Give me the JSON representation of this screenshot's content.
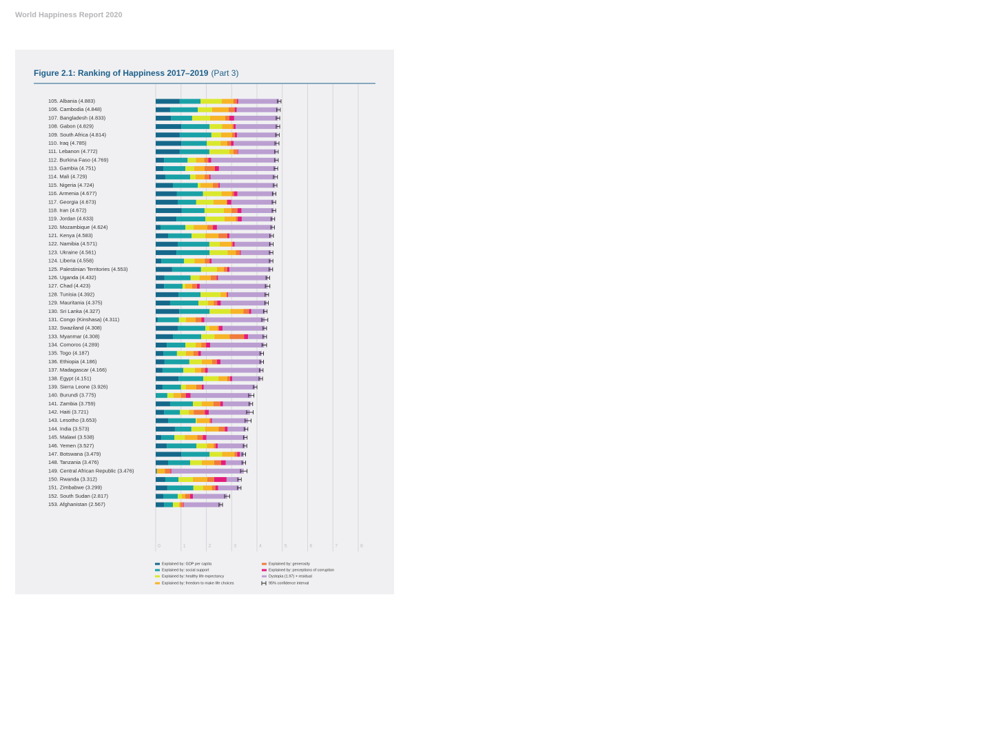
{
  "header": {
    "title": "World Happiness Report 2020"
  },
  "chart_data": {
    "type": "stacked-bar-horizontal",
    "title": "Figure 2.1: Ranking of Happiness 2017–2019",
    "subtitle": "(Part 3)",
    "categories": [
      "105. Albania (4.883)",
      "106. Cambodia (4.848)",
      "107. Bangladesh (4.833)",
      "108. Gabon (4.829)",
      "109. South Africa (4.814)",
      "110. Iraq (4.785)",
      "111. Lebanon (4.772)",
      "112. Burkina Faso (4.769)",
      "113. Gambia (4.751)",
      "114. Mali (4.729)",
      "115. Nigeria (4.724)",
      "116. Armenia (4.677)",
      "117. Georgia (4.673)",
      "118. Iran (4.672)",
      "119. Jordan (4.633)",
      "120. Mozambique (4.624)",
      "121. Kenya (4.583)",
      "122. Namibia (4.571)",
      "123. Ukraine (4.561)",
      "124. Liberia (4.558)",
      "125. Palestinian Territories (4.553)",
      "126. Uganda (4.432)",
      "127. Chad (4.423)",
      "128. Tunisia (4.392)",
      "129. Mauritania (4.375)",
      "130. Sri Lanka (4.327)",
      "131. Congo (Kinshasa) (4.311)",
      "132. Swaziland (4.308)",
      "133. Myanmar (4.308)",
      "134. Comoros (4.289)",
      "135. Togo (4.187)",
      "136. Ethiopia (4.186)",
      "137. Madagascar (4.166)",
      "138. Egypt (4.151)",
      "139. Sierra Leone (3.926)",
      "140. Burundi (3.775)",
      "141. Zambia (3.759)",
      "142. Haiti (3.721)",
      "143. Lesotho (3.653)",
      "144. India (3.573)",
      "145. Malawi (3.538)",
      "146. Yemen (3.527)",
      "147. Botswana (3.479)",
      "148. Tanzania (3.476)",
      "149. Central African Republic (3.476)",
      "150. Rwanda (3.312)",
      "151. Zimbabwe (3.299)",
      "152. South Sudan (2.817)",
      "153. Afghanistan (2.567)"
    ],
    "series": [
      {
        "name": "Explained by: GDP per capita",
        "color": "#16688a",
        "values": [
          0.95,
          0.57,
          0.6,
          1.01,
          0.95,
          1.01,
          0.95,
          0.33,
          0.3,
          0.38,
          0.68,
          0.84,
          0.87,
          1.03,
          0.82,
          0.19,
          0.49,
          0.87,
          0.82,
          0.22,
          0.65,
          0.35,
          0.33,
          0.9,
          0.57,
          0.93,
          0.08,
          0.87,
          0.68,
          0.44,
          0.3,
          0.35,
          0.27,
          0.9,
          0.27,
          0.02,
          0.57,
          0.33,
          0.49,
          0.76,
          0.22,
          0.44,
          1.01,
          0.49,
          0.04,
          0.38,
          0.46,
          0.3,
          0.33
        ]
      },
      {
        "name": "Explained by: social support",
        "color": "#19a1a6",
        "values": [
          0.82,
          1.09,
          0.84,
          1.12,
          1.25,
          1.01,
          1.17,
          0.93,
          0.87,
          0.98,
          0.98,
          1.03,
          0.73,
          0.9,
          1.14,
          0.98,
          0.93,
          1.25,
          1.31,
          0.9,
          1.14,
          1.03,
          0.73,
          0.87,
          1.12,
          1.2,
          0.84,
          1.09,
          1.12,
          0.73,
          0.54,
          0.98,
          0.82,
          0.98,
          0.73,
          0.44,
          0.9,
          0.63,
          1.09,
          0.65,
          0.52,
          1.17,
          1.12,
          0.87,
          0.0,
          0.52,
          1.03,
          0.57,
          0.35
        ]
      },
      {
        "name": "Explained by: healthy life expectancy",
        "color": "#d9e82c",
        "values": [
          0.84,
          0.57,
          0.71,
          0.49,
          0.38,
          0.54,
          0.79,
          0.33,
          0.35,
          0.22,
          0.11,
          0.73,
          0.68,
          0.76,
          0.76,
          0.33,
          0.54,
          0.41,
          0.71,
          0.41,
          0.63,
          0.35,
          0.11,
          0.79,
          0.38,
          0.82,
          0.27,
          0.16,
          0.52,
          0.41,
          0.35,
          0.49,
          0.46,
          0.6,
          0.19,
          0.24,
          0.35,
          0.35,
          0.05,
          0.54,
          0.41,
          0.41,
          0.49,
          0.46,
          0.01,
          0.57,
          0.38,
          0.16,
          0.24
        ]
      },
      {
        "name": "Explained by: freedom to make life choices",
        "color": "#f6b426",
        "values": [
          0.46,
          0.65,
          0.6,
          0.41,
          0.44,
          0.27,
          0.16,
          0.33,
          0.41,
          0.35,
          0.49,
          0.41,
          0.52,
          0.3,
          0.44,
          0.54,
          0.52,
          0.46,
          0.33,
          0.41,
          0.27,
          0.44,
          0.27,
          0.22,
          0.22,
          0.52,
          0.38,
          0.33,
          0.6,
          0.22,
          0.3,
          0.41,
          0.24,
          0.35,
          0.41,
          0.3,
          0.46,
          0.19,
          0.49,
          0.54,
          0.49,
          0.27,
          0.49,
          0.49,
          0.31,
          0.57,
          0.35,
          0.14,
          0.05
        ]
      },
      {
        "name": "Explained by: generosity",
        "color": "#f07b3b",
        "values": [
          0.14,
          0.24,
          0.16,
          0.05,
          0.11,
          0.14,
          0.16,
          0.16,
          0.41,
          0.19,
          0.22,
          0.08,
          0.03,
          0.24,
          0.08,
          0.22,
          0.35,
          0.05,
          0.16,
          0.19,
          0.14,
          0.24,
          0.19,
          0.05,
          0.14,
          0.22,
          0.24,
          0.05,
          0.57,
          0.19,
          0.19,
          0.19,
          0.16,
          0.11,
          0.22,
          0.19,
          0.27,
          0.44,
          0.05,
          0.24,
          0.22,
          0.08,
          0.11,
          0.27,
          0.22,
          0.27,
          0.14,
          0.19,
          0.11
        ]
      },
      {
        "name": "Explained by: perceptions of corruption",
        "color": "#e31c7b",
        "values": [
          0.05,
          0.08,
          0.19,
          0.08,
          0.08,
          0.11,
          0.03,
          0.11,
          0.16,
          0.05,
          0.05,
          0.14,
          0.16,
          0.16,
          0.16,
          0.16,
          0.08,
          0.08,
          0.03,
          0.08,
          0.08,
          0.05,
          0.11,
          0.03,
          0.14,
          0.08,
          0.11,
          0.14,
          0.16,
          0.16,
          0.11,
          0.14,
          0.11,
          0.08,
          0.08,
          0.19,
          0.11,
          0.16,
          0.05,
          0.11,
          0.14,
          0.08,
          0.11,
          0.19,
          0.04,
          0.49,
          0.11,
          0.11,
          0.03
        ]
      },
      {
        "name": "Dystopia (1.97) + residual",
        "color": "#bb9fd1",
        "values": [
          1.62,
          1.65,
          1.73,
          1.67,
          1.6,
          1.71,
          1.51,
          2.58,
          2.25,
          2.56,
          2.19,
          1.45,
          1.68,
          1.28,
          1.23,
          2.2,
          1.67,
          1.45,
          1.2,
          2.35,
          1.64,
          1.97,
          2.68,
          1.53,
          1.81,
          0.56,
          2.39,
          1.67,
          0.66,
          2.14,
          2.4,
          1.63,
          2.11,
          1.13,
          2.03,
          2.4,
          1.1,
          1.62,
          1.43,
          0.73,
          1.54,
          1.08,
          0.15,
          0.71,
          2.86,
          0.51,
          0.83,
          1.35,
          1.46
        ]
      }
    ],
    "ci_name": "95% confidence interval",
    "ci_lower": [
      4.81,
      4.78,
      4.76,
      4.76,
      4.74,
      4.71,
      4.7,
      4.7,
      4.68,
      4.65,
      4.65,
      4.61,
      4.6,
      4.6,
      4.56,
      4.55,
      4.51,
      4.5,
      4.49,
      4.49,
      4.48,
      4.36,
      4.33,
      4.32,
      4.31,
      4.26,
      4.19,
      4.24,
      4.24,
      4.2,
      4.12,
      4.12,
      4.1,
      4.08,
      3.86,
      3.67,
      3.69,
      3.59,
      3.53,
      3.5,
      3.47,
      3.46,
      3.41,
      3.41,
      3.35,
      3.24,
      3.23,
      2.72,
      2.5
    ],
    "ci_upper": [
      4.95,
      4.92,
      4.9,
      4.9,
      4.88,
      4.87,
      4.84,
      4.84,
      4.82,
      4.81,
      4.79,
      4.75,
      4.74,
      4.74,
      4.7,
      4.69,
      4.65,
      4.64,
      4.63,
      4.63,
      4.62,
      4.5,
      4.51,
      4.46,
      4.45,
      4.4,
      4.43,
      4.38,
      4.38,
      4.38,
      4.26,
      4.26,
      4.24,
      4.22,
      4.0,
      3.88,
      3.83,
      3.85,
      3.77,
      3.64,
      3.61,
      3.6,
      3.55,
      3.55,
      3.61,
      3.38,
      3.37,
      2.92,
      2.64
    ],
    "xlim": [
      0,
      8
    ],
    "xticks": [
      0,
      1,
      2,
      3,
      4,
      5,
      6,
      7,
      8
    ],
    "grid": true
  }
}
